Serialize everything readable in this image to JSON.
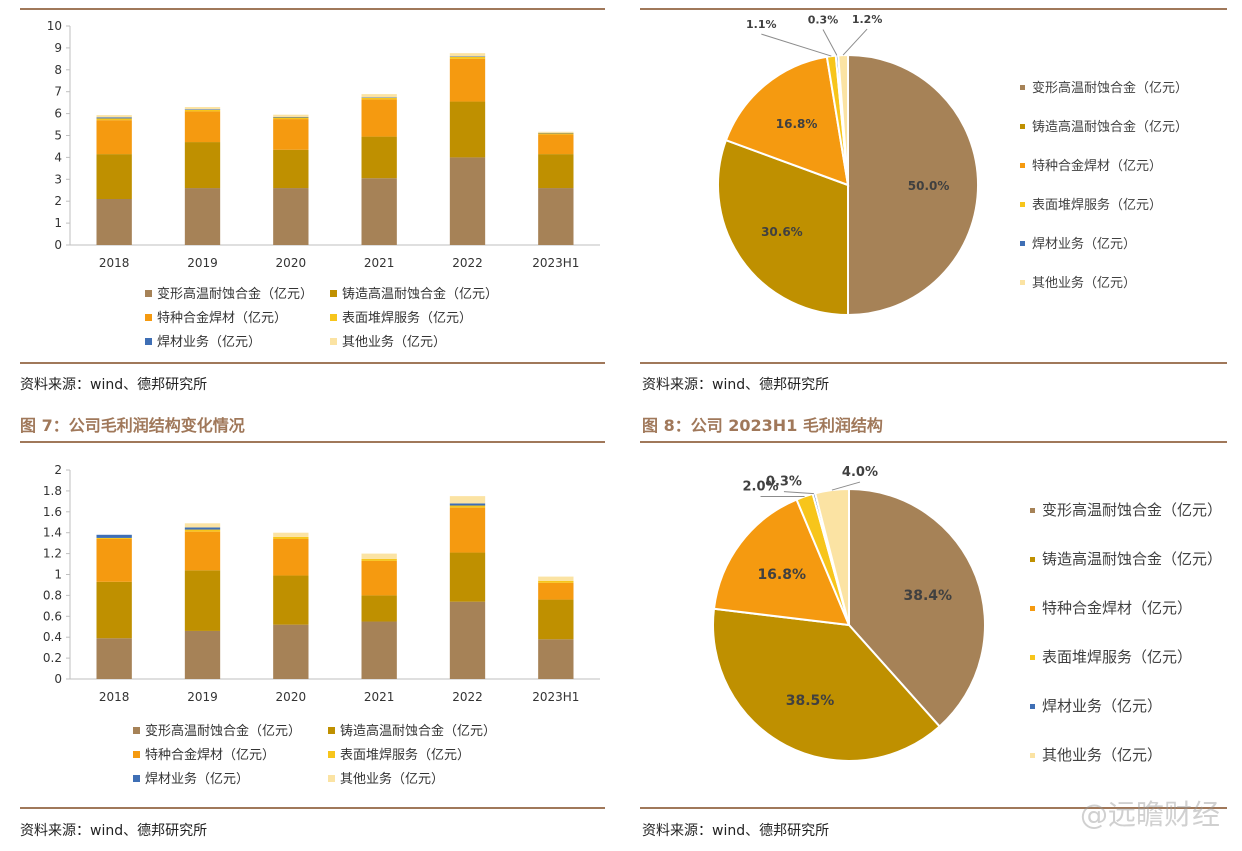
{
  "colors": {
    "accent": "#a0785a",
    "s1": "#a68257",
    "s2": "#bf9000",
    "s3": "#f59a10",
    "s4": "#f7c51b",
    "s5": "#3f6fb5",
    "s6": "#fbe3a3"
  },
  "source_text": "资料来源：wind、德邦研究所",
  "fig7_title": "图 7：公司毛利润结构变化情况",
  "fig8_title": "图 8：公司 2023H1 毛利润结构",
  "watermark": "@远瞻财经",
  "chart_data": [
    {
      "type": "bar",
      "stacked": true,
      "categories": [
        "2018",
        "2019",
        "2020",
        "2021",
        "2022",
        "2023H1"
      ],
      "ylim": [
        0,
        10
      ],
      "yticks": [
        "0",
        "1",
        "2",
        "3",
        "4",
        "5",
        "6",
        "7",
        "8",
        "9",
        "10"
      ],
      "legend": "bottom",
      "series": [
        {
          "name": "变形高温耐蚀合金（亿元）",
          "values": [
            2.1,
            2.6,
            2.6,
            3.05,
            4.0,
            2.6
          ]
        },
        {
          "name": "铸造高温耐蚀合金（亿元）",
          "values": [
            2.05,
            2.1,
            1.75,
            1.9,
            2.55,
            1.55
          ]
        },
        {
          "name": "特种合金焊材（亿元）",
          "values": [
            1.55,
            1.4,
            1.4,
            1.7,
            1.95,
            0.9
          ]
        },
        {
          "name": "表面堆焊服务（亿元）",
          "values": [
            0.08,
            0.07,
            0.07,
            0.07,
            0.09,
            0.06
          ]
        },
        {
          "name": "焊材业务（亿元）",
          "values": [
            0.05,
            0.03,
            0.03,
            0.02,
            0.02,
            0.01
          ]
        },
        {
          "name": "其他业务（亿元）",
          "values": [
            0.1,
            0.1,
            0.1,
            0.15,
            0.15,
            0.05
          ]
        }
      ]
    },
    {
      "type": "pie",
      "legend": "right",
      "labels": [
        "变形高温耐蚀合金（亿元）",
        "铸造高温耐蚀合金（亿元）",
        "特种合金焊材（亿元）",
        "表面堆焊服务（亿元）",
        "焊材业务（亿元）",
        "其他业务（亿元）"
      ],
      "values": [
        50.0,
        30.6,
        16.8,
        1.1,
        0.3,
        1.2
      ],
      "value_labels": [
        "50.0%",
        "30.6%",
        "16.8%",
        "1.1%",
        "0.3%",
        "1.2%"
      ]
    },
    {
      "type": "bar",
      "stacked": true,
      "categories": [
        "2018",
        "2019",
        "2020",
        "2021",
        "2022",
        "2023H1"
      ],
      "ylim": [
        0,
        2
      ],
      "yticks": [
        "0",
        "0.2",
        "0.4",
        "0.6",
        "0.8",
        "1",
        "1.2",
        "1.4",
        "1.6",
        "1.8",
        "2"
      ],
      "legend": "bottom",
      "series": [
        {
          "name": "变形高温耐蚀合金（亿元）",
          "values": [
            0.39,
            0.46,
            0.52,
            0.55,
            0.74,
            0.38
          ]
        },
        {
          "name": "铸造高温耐蚀合金（亿元）",
          "values": [
            0.54,
            0.58,
            0.47,
            0.25,
            0.47,
            0.38
          ]
        },
        {
          "name": "特种合金焊材（亿元）",
          "values": [
            0.41,
            0.37,
            0.35,
            0.33,
            0.43,
            0.16
          ]
        },
        {
          "name": "表面堆焊服务（亿元）",
          "values": [
            0.01,
            0.02,
            0.02,
            0.02,
            0.02,
            0.02
          ]
        },
        {
          "name": "焊材业务（亿元）",
          "values": [
            0.03,
            0.02,
            0.0,
            0.0,
            0.02,
            0.0
          ]
        },
        {
          "name": "其他业务（亿元）",
          "values": [
            0.0,
            0.04,
            0.04,
            0.05,
            0.07,
            0.04
          ]
        }
      ]
    },
    {
      "type": "pie",
      "legend": "right",
      "labels": [
        "变形高温耐蚀合金（亿元）",
        "铸造高温耐蚀合金（亿元）",
        "特种合金焊材（亿元）",
        "表面堆焊服务（亿元）",
        "焊材业务（亿元）",
        "其他业务（亿元）"
      ],
      "values": [
        38.4,
        38.5,
        16.8,
        2.0,
        0.3,
        4.0
      ],
      "value_labels": [
        "38.4%",
        "38.5%",
        "16.8%",
        "2.0%",
        "0.3%",
        "4.0%"
      ]
    }
  ]
}
